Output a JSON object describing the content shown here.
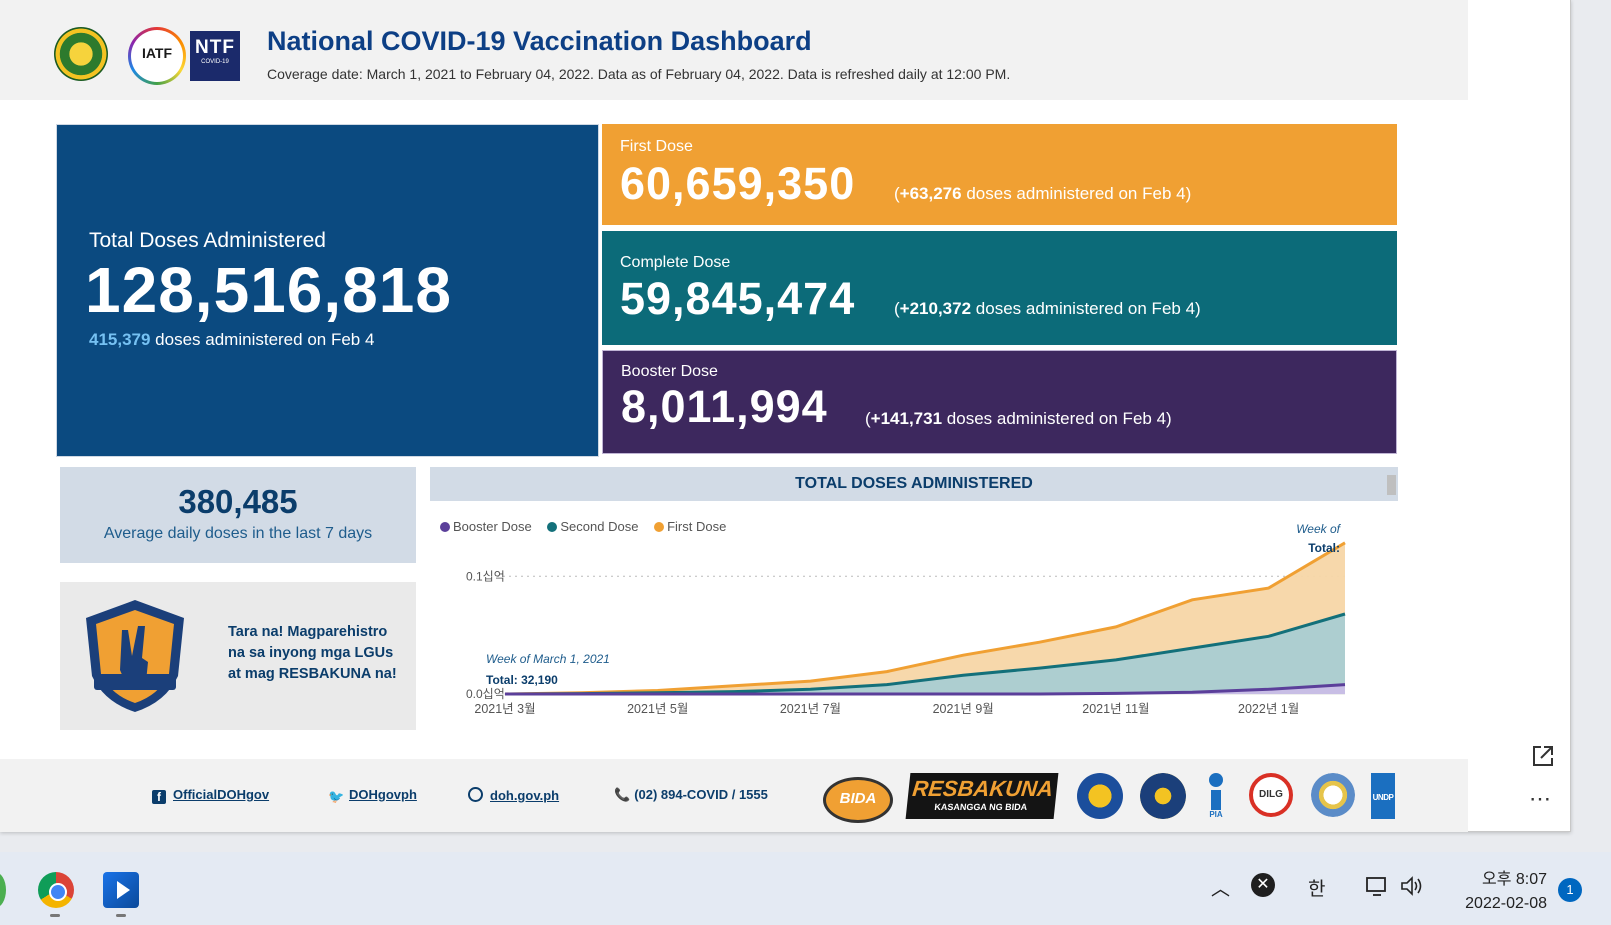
{
  "header": {
    "title": "National COVID-19 Vaccination Dashboard",
    "subtitle": "Coverage date: March 1, 2021 to February 04, 2022. Data as of February 04, 2022. Data is refreshed daily at 12:00 PM.",
    "logos": [
      {
        "name": "doh-seal"
      },
      {
        "name": "iatf-logo",
        "text": "IATF"
      },
      {
        "name": "ntf-logo",
        "text": "NTF",
        "subtext": "COVID-19"
      }
    ]
  },
  "total": {
    "label": "Total Doses Administered",
    "value": "128,516,818",
    "daily_value": "415,379",
    "daily_text": " doses administered on Feb 4"
  },
  "doses": {
    "first": {
      "label": "First Dose",
      "value": "60,659,350",
      "delta_open": "(",
      "delta": "+63,276",
      "delta_text": " doses administered on Feb 4)"
    },
    "complete": {
      "label": "Complete Dose",
      "value": "59,845,474",
      "delta_open": "(",
      "delta": "+210,372",
      "delta_text": " doses administered on Feb 4)"
    },
    "booster": {
      "label": "Booster Dose",
      "value": "8,011,994",
      "delta_open": "(",
      "delta": "+141,731",
      "delta_text": " doses administered on Feb 4)"
    }
  },
  "average": {
    "value": "380,485",
    "label": "Average daily doses in the last 7 days"
  },
  "promo": {
    "text": "Tara na! Magparehistro na sa inyong mga LGUs at mag RESBAKUNA na!",
    "shield_name": "resbakuna-shield"
  },
  "chart_data": {
    "type": "area",
    "title": "TOTAL DOSES ADMINISTERED",
    "legend": [
      "Booster Dose",
      "Second Dose",
      "First Dose"
    ],
    "colors": {
      "booster": "#5b3f9a",
      "second": "#13707a",
      "first": "#f0a033"
    },
    "x": [
      "2021-03",
      "2021-04",
      "2021-05",
      "2021-06",
      "2021-07",
      "2021-08",
      "2021-09",
      "2021-10",
      "2021-11",
      "2021-12",
      "2022-01",
      "2022-02"
    ],
    "x_tick_labels": [
      "2021년 3월",
      "2021년 5월",
      "2021년 7월",
      "2021년 9월",
      "2021년 11월",
      "2022년 1월"
    ],
    "x_tick_values": [
      "2021-03",
      "2021-05",
      "2021-07",
      "2021-09",
      "2021-11",
      "2022-01"
    ],
    "y_tick_labels": [
      "0.0십억",
      "0.1십억"
    ],
    "y_tick_values": [
      0,
      0.1
    ],
    "ylim": [
      0,
      0.13
    ],
    "series": [
      {
        "name": "First Dose",
        "values": [
          0.0,
          0.001,
          0.003,
          0.007,
          0.011,
          0.019,
          0.033,
          0.044,
          0.057,
          0.08,
          0.09,
          0.1285
        ]
      },
      {
        "name": "Second Dose",
        "values": [
          0.0,
          0.0003,
          0.001,
          0.002,
          0.004,
          0.008,
          0.016,
          0.022,
          0.029,
          0.039,
          0.049,
          0.068
        ]
      },
      {
        "name": "Booster Dose",
        "values": [
          0.0,
          0.0,
          0.0,
          0.0,
          0.0,
          0.0,
          0.0,
          0.0,
          0.0005,
          0.0015,
          0.004,
          0.008
        ]
      }
    ],
    "tooltip_start": {
      "line1": "Week of March 1, 2021",
      "line2": "Total: 32,190"
    },
    "tooltip_end": {
      "line1": "Week of",
      "line2": "Total:"
    }
  },
  "footer": {
    "facebook": "OfficialDOHgov",
    "twitter": "DOHgovph",
    "website": "doh.gov.ph",
    "phone": "(02) 894-COVID / 1555",
    "resbakuna_title": "RESBAKUNA",
    "resbakuna_sub": "KASANGGA NG BIDA",
    "bida_text": "BIDA",
    "dilg_text": "DILG",
    "pia_text": "PIA",
    "undp_text": "UNDP"
  },
  "taskbar": {
    "ime": "한",
    "time_line1": "오후 8:07",
    "time_line2": "2022-02-08",
    "notifications": "1"
  }
}
